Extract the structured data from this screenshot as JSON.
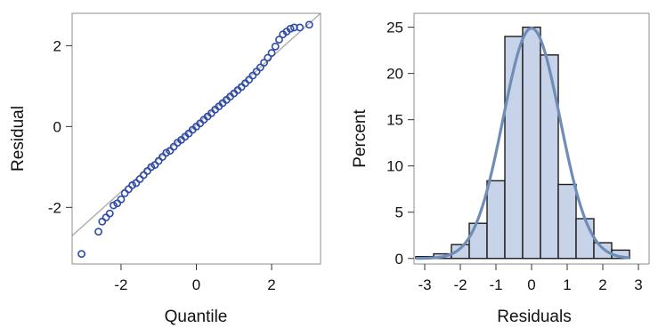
{
  "chart_data": [
    {
      "type": "scatter",
      "xlabel": "Quantile",
      "ylabel": "Residual",
      "xlim": [
        -3.3,
        3.3
      ],
      "ylim": [
        -3.4,
        2.8
      ],
      "xticks": [
        -2,
        0,
        2
      ],
      "yticks": [
        -2,
        0,
        2
      ],
      "reference_line": [
        [
          -3.3,
          -2.7
        ],
        [
          3.3,
          2.8
        ]
      ],
      "series": [
        {
          "points": [
            [
              -3.05,
              -3.15
            ],
            [
              -2.6,
              -2.6
            ],
            [
              -2.5,
              -2.35
            ],
            [
              -2.4,
              -2.25
            ],
            [
              -2.3,
              -2.15
            ],
            [
              -2.2,
              -1.95
            ],
            [
              -2.1,
              -1.9
            ],
            [
              -2.0,
              -1.8
            ],
            [
              -1.9,
              -1.65
            ],
            [
              -1.8,
              -1.55
            ],
            [
              -1.7,
              -1.45
            ],
            [
              -1.6,
              -1.4
            ],
            [
              -1.5,
              -1.3
            ],
            [
              -1.4,
              -1.2
            ],
            [
              -1.3,
              -1.1
            ],
            [
              -1.2,
              -1.0
            ],
            [
              -1.1,
              -0.95
            ],
            [
              -1.0,
              -0.85
            ],
            [
              -0.9,
              -0.75
            ],
            [
              -0.8,
              -0.65
            ],
            [
              -0.7,
              -0.6
            ],
            [
              -0.6,
              -0.5
            ],
            [
              -0.5,
              -0.4
            ],
            [
              -0.4,
              -0.33
            ],
            [
              -0.3,
              -0.25
            ],
            [
              -0.2,
              -0.17
            ],
            [
              -0.1,
              -0.08
            ],
            [
              0.0,
              0.0
            ],
            [
              0.1,
              0.08
            ],
            [
              0.2,
              0.17
            ],
            [
              0.3,
              0.25
            ],
            [
              0.4,
              0.33
            ],
            [
              0.5,
              0.42
            ],
            [
              0.6,
              0.5
            ],
            [
              0.7,
              0.58
            ],
            [
              0.8,
              0.66
            ],
            [
              0.9,
              0.74
            ],
            [
              1.0,
              0.82
            ],
            [
              1.1,
              0.9
            ],
            [
              1.2,
              0.98
            ],
            [
              1.3,
              1.07
            ],
            [
              1.4,
              1.16
            ],
            [
              1.5,
              1.26
            ],
            [
              1.6,
              1.36
            ],
            [
              1.7,
              1.46
            ],
            [
              1.8,
              1.58
            ],
            [
              1.9,
              1.7
            ],
            [
              2.0,
              1.82
            ],
            [
              2.1,
              1.98
            ],
            [
              2.2,
              2.15
            ],
            [
              2.3,
              2.28
            ],
            [
              2.4,
              2.35
            ],
            [
              2.5,
              2.42
            ],
            [
              2.6,
              2.45
            ],
            [
              2.75,
              2.45
            ],
            [
              3.0,
              2.52
            ]
          ]
        }
      ]
    },
    {
      "type": "bar",
      "xlabel": "Residuals",
      "ylabel": "Percent",
      "xlim": [
        -3.3,
        3.3
      ],
      "ylim": [
        -0.6,
        26.5
      ],
      "xticks": [
        -3,
        -2,
        -1,
        0,
        1,
        2,
        3
      ],
      "yticks": [
        0,
        5,
        10,
        15,
        20,
        25
      ],
      "bin_width": 0.5,
      "bin_lefts": [
        -3.25,
        -2.75,
        -2.25,
        -1.75,
        -1.25,
        -0.75,
        -0.25,
        0.25,
        0.75,
        1.25,
        1.75,
        2.25
      ],
      "values": [
        0.2,
        0.5,
        1.5,
        3.8,
        8.4,
        24.0,
        25.0,
        22.0,
        8.0,
        4.3,
        1.7,
        0.9
      ],
      "density_curve": {
        "type": "normal",
        "mean": 0.0,
        "sd": 0.8,
        "peak_percent": 24.9
      }
    }
  ],
  "colors": {
    "marker": "#2d4aa8",
    "reference_line": "#b0b0b0",
    "bar_fill": "#c7d3e8",
    "bar_stroke": "#1c1c1c",
    "curve": "#6f8db6",
    "frame": "#8c8c8c"
  }
}
